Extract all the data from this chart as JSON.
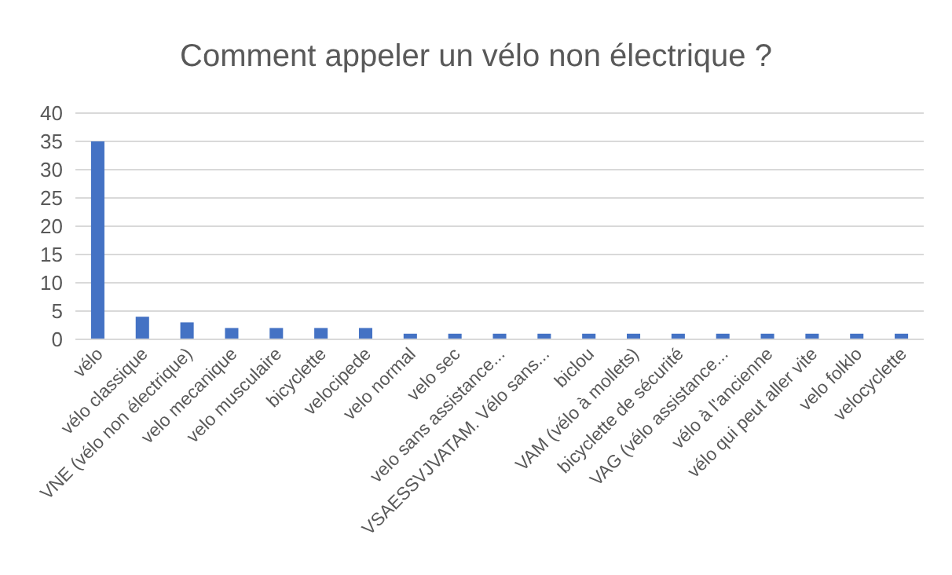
{
  "chart_data": {
    "type": "bar",
    "title": "Comment appeler un vélo non électrique ?",
    "categories": [
      "vélo",
      "vélo classique",
      "VNE (vélo non électrique)",
      "velo mecanique",
      "velo musculaire",
      "bicyclette",
      "velocipede",
      "velo normal",
      "velo sec",
      "velo sans assistance...",
      "VSAESSVJVATAM. Vélo sans...",
      "biclou",
      "VAM (vélo à mollets)",
      "bicyclette de sécurité",
      "VAG (vélo assistance...",
      "vélo à l'ancienne",
      "vélo qui peut aller vite",
      "velo folklo",
      "velocyclette"
    ],
    "values": [
      35,
      4,
      3,
      2,
      2,
      2,
      2,
      1,
      1,
      1,
      1,
      1,
      1,
      1,
      1,
      1,
      1,
      1,
      1
    ],
    "color": "#4472c4",
    "ylim": [
      0,
      40
    ],
    "yticks": [
      0,
      5,
      10,
      15,
      20,
      25,
      30,
      35,
      40
    ],
    "grid": "y"
  }
}
